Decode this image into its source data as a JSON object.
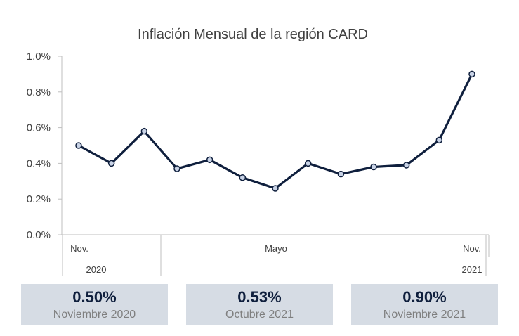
{
  "chart_data": {
    "type": "line",
    "title": "Inflación Mensual de la región CARD",
    "y_ticks": [
      "1.0%",
      "0.8%",
      "0.6%",
      "0.4%",
      "0.2%",
      "0.0%"
    ],
    "ylim": [
      0,
      1.0
    ],
    "x_labels": [
      {
        "index": 0,
        "month": "Nov.",
        "year": "2020"
      },
      {
        "index": 6,
        "month": "Mayo",
        "year": ""
      },
      {
        "index": 12,
        "month": "Nov.",
        "year": "2021"
      }
    ],
    "series": [
      {
        "values": [
          0.5,
          0.4,
          0.58,
          0.37,
          0.42,
          0.32,
          0.26,
          0.4,
          0.34,
          0.38,
          0.39,
          0.53,
          0.9
        ]
      }
    ],
    "line_color": "#0f1f3d",
    "marker_fill": "#c9d3e6",
    "grid": false
  },
  "cards": [
    {
      "value": "0.50%",
      "label": "Noviembre 2020"
    },
    {
      "value": "0.53%",
      "label": "Octubre 2021"
    },
    {
      "value": "0.90%",
      "label": "Noviembre 2021"
    }
  ]
}
